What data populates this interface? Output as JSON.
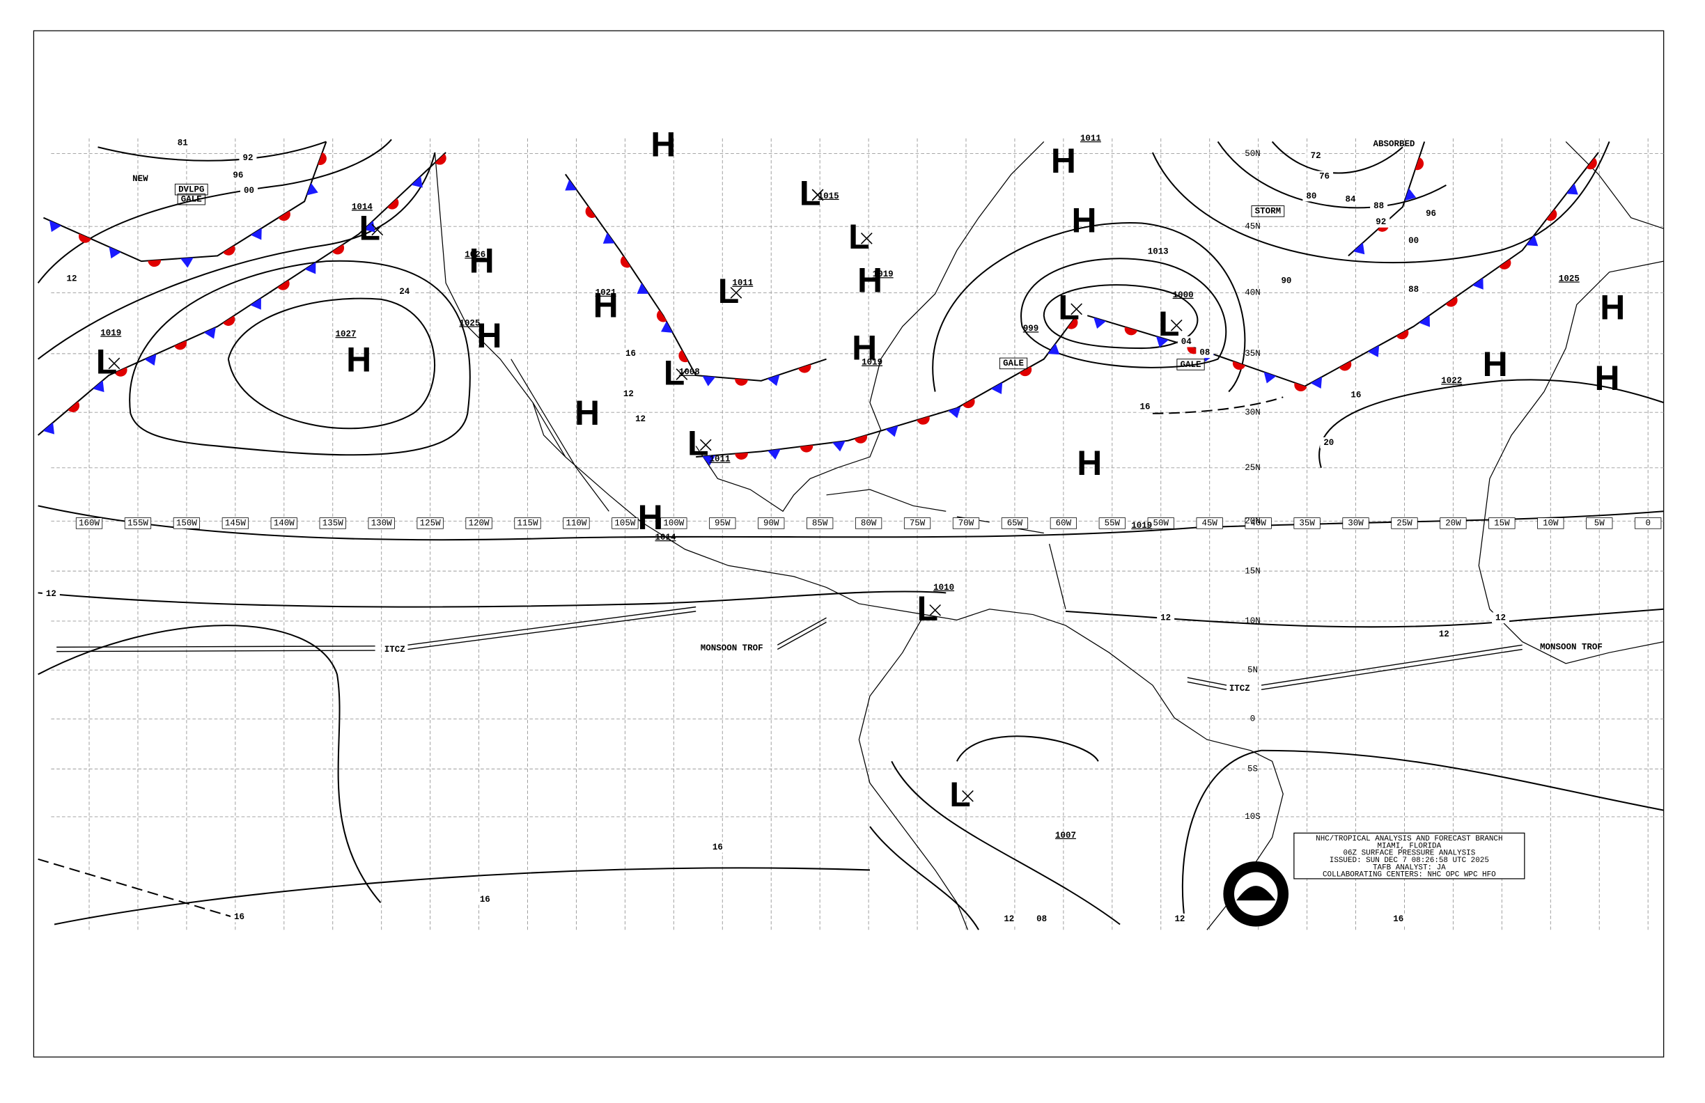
{
  "map": {
    "title_box": [
      "NHC/TROPICAL ANALYSIS AND FORECAST BRANCH",
      "MIAMI, FLORIDA",
      "06Z SURFACE PRESSURE ANALYSIS",
      "ISSUED: SUN DEC 7 08:26:58 UTC 2025",
      "TAFB ANALYST: JA",
      "COLLABORATING CENTERS: NHC OPC WPC HFO"
    ],
    "longitude_labels": [
      "160W",
      "155W",
      "150W",
      "145W",
      "140W",
      "135W",
      "130W",
      "125W",
      "120W",
      "115W",
      "110W",
      "105W",
      "100W",
      "95W",
      "90W",
      "85W",
      "80W",
      "75W",
      "70W",
      "65W",
      "60W",
      "55W",
      "50W",
      "45W",
      "40W",
      "35W",
      "30W",
      "25W",
      "20W",
      "15W",
      "10W",
      "5W",
      "0"
    ],
    "latitude_labels": [
      "50N",
      "45N",
      "40N",
      "35N",
      "30N",
      "25N",
      "20N",
      "15N",
      "10N",
      "5N",
      "0",
      "5S",
      "10S"
    ],
    "pressure_centers": [
      {
        "symbol": "H",
        "label": "1027"
      },
      {
        "symbol": "L",
        "label": "1014"
      },
      {
        "symbol": "L",
        "label": "1019"
      },
      {
        "symbol": "H",
        "label": "1026"
      },
      {
        "symbol": "H",
        "label": "1021"
      },
      {
        "symbol": "H",
        "label": "1025"
      },
      {
        "symbol": "H",
        "label": "1014"
      },
      {
        "symbol": "L",
        "label": "1008"
      },
      {
        "symbol": "L",
        "label": "1011"
      },
      {
        "symbol": "L",
        "label": "1011"
      },
      {
        "symbol": "L",
        "label": "1015"
      },
      {
        "symbol": "H",
        "label": "1019"
      },
      {
        "symbol": "H",
        "label": "1019"
      },
      {
        "symbol": "H",
        "label": "1011"
      },
      {
        "symbol": "L",
        "label": "999"
      },
      {
        "symbol": "L",
        "label": "1000"
      },
      {
        "symbol": "H",
        "label": "1019"
      },
      {
        "symbol": "H",
        "label": "1022"
      },
      {
        "symbol": "H",
        "label": "1025"
      },
      {
        "symbol": "L",
        "label": "1010"
      },
      {
        "symbol": "L",
        "label": "1007"
      },
      {
        "symbol": "H"
      },
      {
        "symbol": "H"
      },
      {
        "symbol": "L"
      },
      {
        "symbol": "H"
      },
      {
        "symbol": "H"
      },
      {
        "symbol": "L"
      }
    ],
    "isobar_labels": [
      "92",
      "96",
      "00",
      "12",
      "24",
      "16",
      "20",
      "12",
      "12",
      "16",
      "90",
      "88",
      "96",
      "00",
      "92",
      "88",
      "84",
      "80",
      "76",
      "72",
      "08",
      "04",
      "16",
      "20",
      "12",
      "16",
      "16",
      "16",
      "12",
      "08",
      "12",
      "16",
      "1013",
      "12",
      "12",
      "12",
      "81"
    ],
    "feature_labels": [
      "NEW",
      "DVLPG",
      "GALE",
      "STORM",
      "GALE",
      "GALE",
      "ABSORBED",
      "ITCZ",
      "MONSOON TROF",
      "ITCZ",
      "MONSOON TROF"
    ]
  }
}
